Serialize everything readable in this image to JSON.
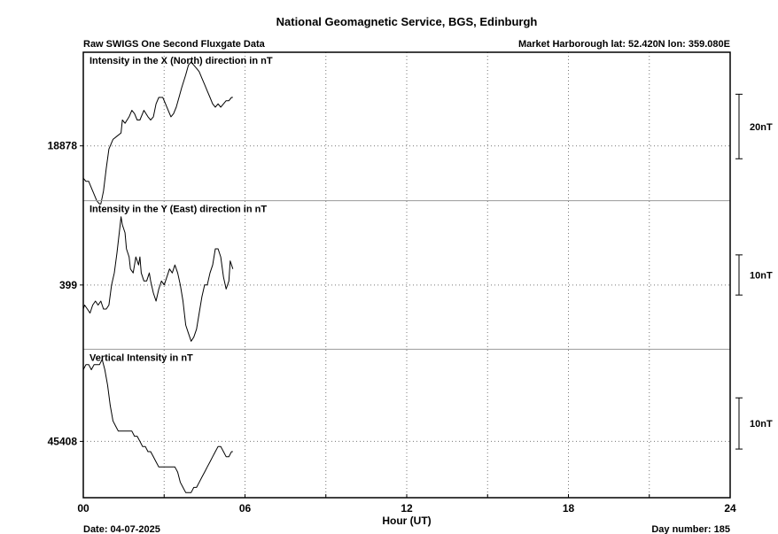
{
  "title": "National Geomagnetic Service, BGS, Edinburgh",
  "subtitle_left": "Raw SWIGS One Second Fluxgate Data",
  "subtitle_right": "Market Harborough  lat: 52.420N lon: 359.080E",
  "x_axis": {
    "label": "Hour (UT)",
    "ticks": [
      "00",
      "06",
      "12",
      "18",
      "24"
    ],
    "range": [
      0,
      24
    ],
    "grid": true
  },
  "footer": {
    "date": "Date: 04-07-2025",
    "day_number": "Day number:  185"
  },
  "chart_data": [
    {
      "type": "line",
      "title": "Intensity in the X (North) direction in nT",
      "baseline_label": "18878",
      "scale_label": "20nT",
      "scale_nT": 20,
      "x_unit": "hour UT",
      "baseline": 18878,
      "ylim": [
        18861,
        18907
      ],
      "points": [
        [
          0.0,
          18868
        ],
        [
          0.1,
          18867
        ],
        [
          0.2,
          18867
        ],
        [
          0.3,
          18865
        ],
        [
          0.4,
          18863
        ],
        [
          0.5,
          18861
        ],
        [
          0.6,
          18860
        ],
        [
          0.65,
          18860
        ],
        [
          0.75,
          18864
        ],
        [
          0.85,
          18871
        ],
        [
          0.95,
          18877
        ],
        [
          1.1,
          18880
        ],
        [
          1.25,
          18881
        ],
        [
          1.4,
          18882
        ],
        [
          1.45,
          18886
        ],
        [
          1.55,
          18885
        ],
        [
          1.7,
          18887
        ],
        [
          1.8,
          18889
        ],
        [
          1.9,
          18888
        ],
        [
          2.0,
          18886
        ],
        [
          2.1,
          18886
        ],
        [
          2.25,
          18889
        ],
        [
          2.4,
          18887
        ],
        [
          2.5,
          18886
        ],
        [
          2.6,
          18887
        ],
        [
          2.7,
          18891
        ],
        [
          2.8,
          18893
        ],
        [
          2.95,
          18893
        ],
        [
          3.05,
          18891
        ],
        [
          3.15,
          18889
        ],
        [
          3.25,
          18887
        ],
        [
          3.35,
          18888
        ],
        [
          3.45,
          18890
        ],
        [
          3.55,
          18893
        ],
        [
          3.65,
          18896
        ],
        [
          3.8,
          18900
        ],
        [
          3.9,
          18903
        ],
        [
          4.0,
          18904
        ],
        [
          4.1,
          18903
        ],
        [
          4.2,
          18902
        ],
        [
          4.3,
          18901
        ],
        [
          4.4,
          18899
        ],
        [
          4.5,
          18897
        ],
        [
          4.6,
          18895
        ],
        [
          4.7,
          18893
        ],
        [
          4.8,
          18891
        ],
        [
          4.9,
          18890
        ],
        [
          5.0,
          18891
        ],
        [
          5.1,
          18890
        ],
        [
          5.2,
          18891
        ],
        [
          5.3,
          18892
        ],
        [
          5.4,
          18892
        ],
        [
          5.5,
          18893
        ],
        [
          5.55,
          18893
        ]
      ]
    },
    {
      "type": "line",
      "title": "Intensity in the Y (East) direction in nT",
      "baseline_label": "399",
      "scale_label": "10nT",
      "scale_nT": 10,
      "x_unit": "hour UT",
      "baseline": 399,
      "ylim": [
        383,
        420
      ],
      "points": [
        [
          0.0,
          393
        ],
        [
          0.05,
          394
        ],
        [
          0.15,
          393
        ],
        [
          0.25,
          392
        ],
        [
          0.35,
          394
        ],
        [
          0.45,
          395
        ],
        [
          0.55,
          394
        ],
        [
          0.65,
          395
        ],
        [
          0.75,
          393
        ],
        [
          0.85,
          393
        ],
        [
          0.95,
          394
        ],
        [
          1.05,
          399
        ],
        [
          1.15,
          402
        ],
        [
          1.25,
          407
        ],
        [
          1.35,
          413
        ],
        [
          1.4,
          416
        ],
        [
          1.45,
          414
        ],
        [
          1.55,
          412
        ],
        [
          1.6,
          408
        ],
        [
          1.7,
          406
        ],
        [
          1.75,
          403
        ],
        [
          1.85,
          402
        ],
        [
          1.9,
          404
        ],
        [
          1.95,
          406
        ],
        [
          2.05,
          404
        ],
        [
          2.1,
          406
        ],
        [
          2.15,
          402
        ],
        [
          2.25,
          400
        ],
        [
          2.35,
          400
        ],
        [
          2.45,
          402
        ],
        [
          2.5,
          400
        ],
        [
          2.6,
          397
        ],
        [
          2.7,
          395
        ],
        [
          2.8,
          398
        ],
        [
          2.9,
          400
        ],
        [
          3.0,
          399
        ],
        [
          3.1,
          401
        ],
        [
          3.2,
          403
        ],
        [
          3.3,
          402
        ],
        [
          3.4,
          404
        ],
        [
          3.5,
          402
        ],
        [
          3.6,
          399
        ],
        [
          3.7,
          395
        ],
        [
          3.8,
          389
        ],
        [
          3.9,
          387
        ],
        [
          4.0,
          385
        ],
        [
          4.1,
          386
        ],
        [
          4.2,
          388
        ],
        [
          4.3,
          392
        ],
        [
          4.4,
          396
        ],
        [
          4.5,
          399
        ],
        [
          4.6,
          399
        ],
        [
          4.7,
          402
        ],
        [
          4.8,
          404
        ],
        [
          4.9,
          408
        ],
        [
          5.0,
          408
        ],
        [
          5.1,
          406
        ],
        [
          5.2,
          401
        ],
        [
          5.3,
          398
        ],
        [
          5.4,
          400
        ],
        [
          5.45,
          405
        ],
        [
          5.5,
          404
        ],
        [
          5.55,
          403
        ]
      ]
    },
    {
      "type": "line",
      "title": "Vertical Intensity in nT",
      "baseline_label": "45408",
      "scale_label": "10nT",
      "scale_nT": 10,
      "x_unit": "hour UT",
      "baseline": 45408,
      "ylim": [
        45397,
        45426
      ],
      "points": [
        [
          0.0,
          45422
        ],
        [
          0.1,
          45423
        ],
        [
          0.2,
          45423
        ],
        [
          0.3,
          45422
        ],
        [
          0.4,
          45423
        ],
        [
          0.5,
          45423
        ],
        [
          0.6,
          45423
        ],
        [
          0.7,
          45424
        ],
        [
          0.8,
          45422
        ],
        [
          0.9,
          45419
        ],
        [
          1.0,
          45415
        ],
        [
          1.1,
          45412
        ],
        [
          1.2,
          45411
        ],
        [
          1.3,
          45410
        ],
        [
          1.4,
          45410
        ],
        [
          1.5,
          45410
        ],
        [
          1.6,
          45410
        ],
        [
          1.7,
          45410
        ],
        [
          1.8,
          45410
        ],
        [
          1.9,
          45409
        ],
        [
          2.0,
          45409
        ],
        [
          2.1,
          45408
        ],
        [
          2.2,
          45407
        ],
        [
          2.3,
          45407
        ],
        [
          2.4,
          45406
        ],
        [
          2.5,
          45406
        ],
        [
          2.6,
          45405
        ],
        [
          2.7,
          45404
        ],
        [
          2.8,
          45403
        ],
        [
          2.9,
          45403
        ],
        [
          3.0,
          45403
        ],
        [
          3.1,
          45403
        ],
        [
          3.2,
          45403
        ],
        [
          3.3,
          45403
        ],
        [
          3.4,
          45403
        ],
        [
          3.5,
          45402
        ],
        [
          3.6,
          45400
        ],
        [
          3.7,
          45399
        ],
        [
          3.8,
          45398
        ],
        [
          3.9,
          45398
        ],
        [
          4.0,
          45398
        ],
        [
          4.1,
          45399
        ],
        [
          4.2,
          45399
        ],
        [
          4.3,
          45400
        ],
        [
          4.4,
          45401
        ],
        [
          4.5,
          45402
        ],
        [
          4.6,
          45403
        ],
        [
          4.7,
          45404
        ],
        [
          4.8,
          45405
        ],
        [
          4.9,
          45406
        ],
        [
          5.0,
          45407
        ],
        [
          5.1,
          45407
        ],
        [
          5.2,
          45406
        ],
        [
          5.3,
          45405
        ],
        [
          5.4,
          45405
        ],
        [
          5.5,
          45406
        ],
        [
          5.55,
          45406
        ]
      ]
    }
  ]
}
